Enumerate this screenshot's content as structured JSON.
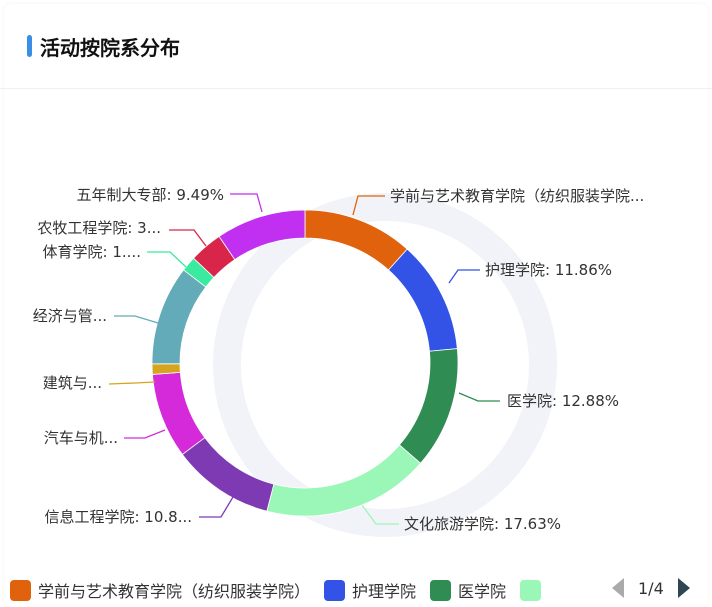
{
  "header": {
    "title": "活动按院系分布",
    "accent_color": "#3a8ee6"
  },
  "chart_data": {
    "type": "pie",
    "variant": "donut",
    "series": [
      {
        "name": "学前与艺术教育学院（纺织服装学院）",
        "value": 11.64,
        "color": "#e0620d",
        "label": "学前与艺术教育学院（纺织服装学院..."
      },
      {
        "name": "护理学院",
        "value": 11.86,
        "color": "#3352e6",
        "label": "护理学院: 11.86%"
      },
      {
        "name": "医学院",
        "value": 12.88,
        "color": "#2f8c52",
        "label": "医学院: 12.88%"
      },
      {
        "name": "文化旅游学院",
        "value": 17.63,
        "color": "#9af7b8",
        "label": "文化旅游学院: 17.63%"
      },
      {
        "name": "信息工程学院",
        "value": 10.8,
        "color": "#7d3ab2",
        "label": "信息工程学院: 10.8..."
      },
      {
        "name": "汽车与机...",
        "value": 9.0,
        "color": "#d42ada",
        "label": "汽车与机..."
      },
      {
        "name": "建筑与...",
        "value": 1.1,
        "color": "#d6a41f",
        "label": "建筑与..."
      },
      {
        "name": "经济与管...",
        "value": 10.5,
        "color": "#63abb8",
        "label": "经济与管..."
      },
      {
        "name": "体育学院",
        "value": 1.6,
        "color": "#3aea9f",
        "label": "体育学院: 1...."
      },
      {
        "name": "农牧工程学院",
        "value": 3.5,
        "color": "#d9254a",
        "label": "农牧工程学院: 3..."
      },
      {
        "name": "五年制大专部",
        "value": 9.49,
        "color": "#c12ff0",
        "label": "五年制大专部: 9.49%"
      }
    ],
    "legend": {
      "placement": "bottom",
      "visible_items": [
        "学前与艺术教育学院（纺织服装学院）",
        "护理学院",
        "医学院",
        ""
      ],
      "page": "1/4"
    }
  }
}
